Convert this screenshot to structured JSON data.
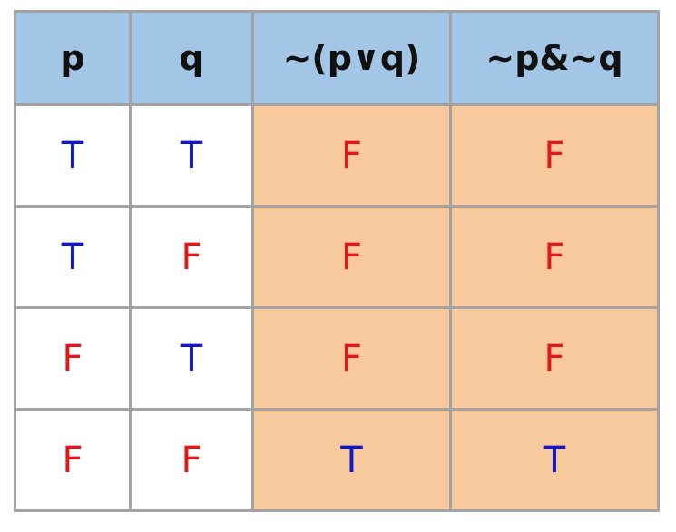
{
  "colors": {
    "header_bg": "#a4c6e6",
    "result_bg": "#f7c99d",
    "true_color": "#1218c8",
    "false_color": "#e0181a",
    "border": "#a3a3a3"
  },
  "table": {
    "headers": [
      "p",
      "q",
      "~(p∨q)",
      "~p&~q"
    ],
    "rows": [
      [
        "T",
        "T",
        "F",
        "F"
      ],
      [
        "T",
        "F",
        "F",
        "F"
      ],
      [
        "F",
        "T",
        "F",
        "F"
      ],
      [
        "F",
        "F",
        "T",
        "T"
      ]
    ]
  }
}
